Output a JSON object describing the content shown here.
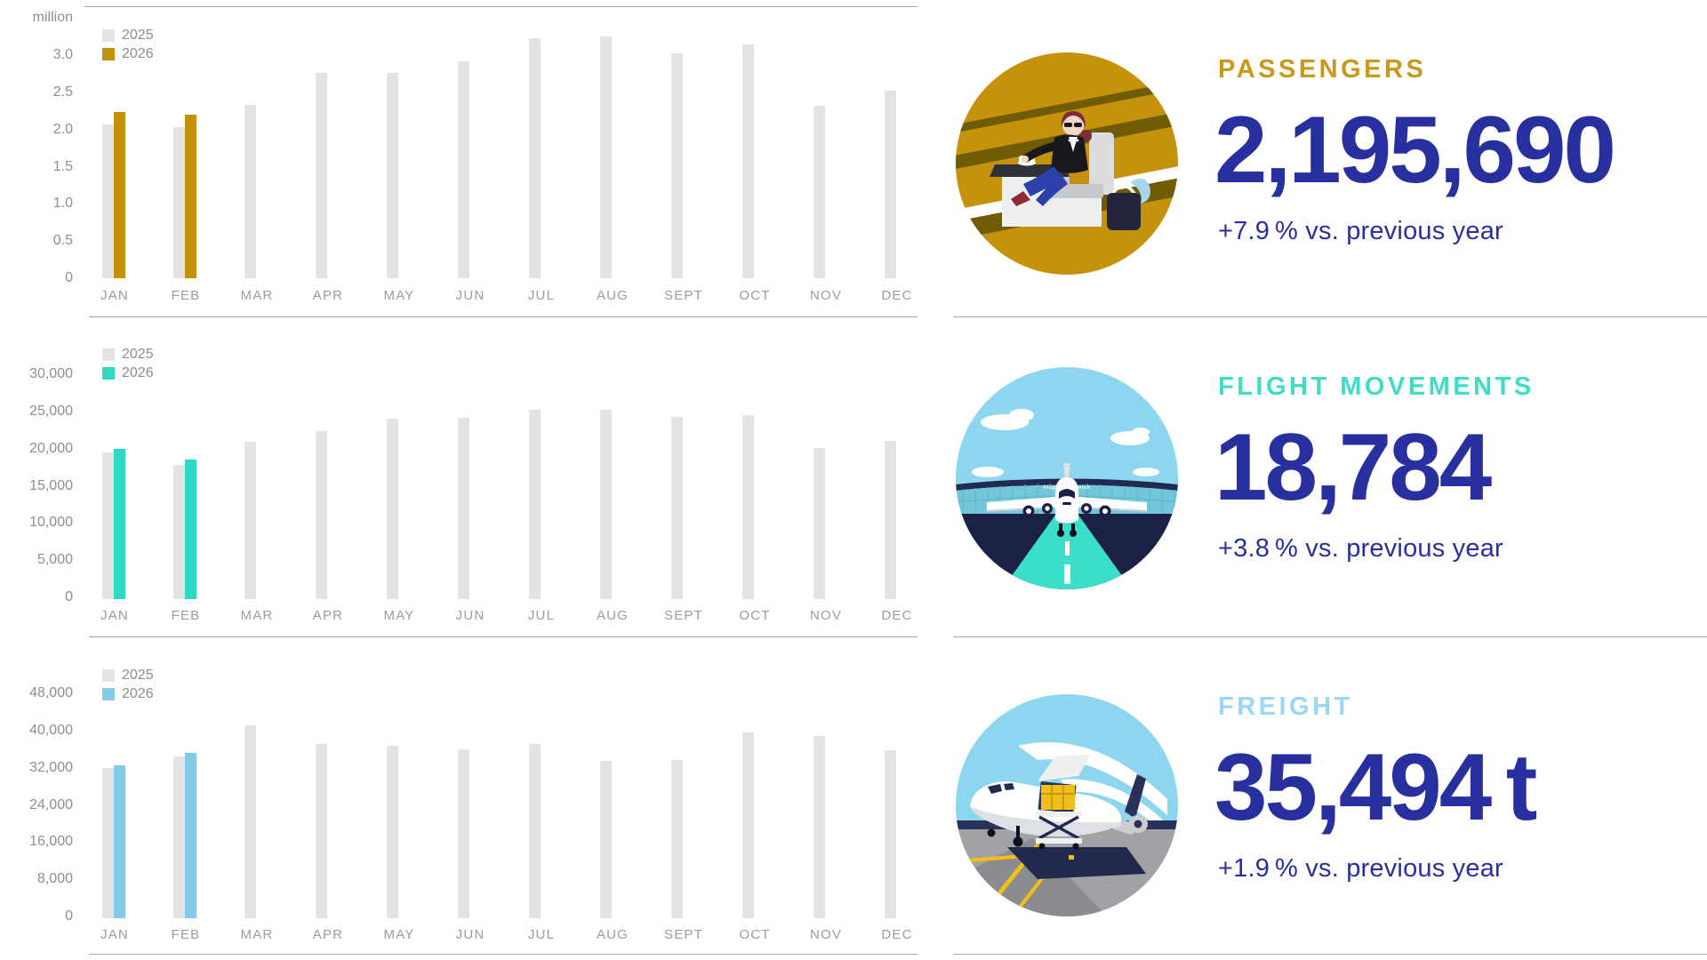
{
  "page": {
    "background": "#FFFFFF"
  },
  "colors": {
    "bar_2025": "#E3E3E6",
    "bar_gold_2026": "#C29104",
    "bar_teal_2026": "#2ED8C3",
    "bar_blue_2026": "#85CBE9",
    "heading_gold": "#C7981B",
    "heading_teal": "#3FDCC6",
    "heading_blue": "#9BD7F3",
    "kpi_navy": "#282F9E",
    "axis_text": "#8D8D92",
    "divider": "#A6A6A6"
  },
  "chart_data": [
    {
      "type": "bar",
      "section": "passengers",
      "unit_label": "million",
      "categories": [
        "JAN",
        "FEB",
        "MAR",
        "APR",
        "MAY",
        "JUN",
        "JUL",
        "AUG",
        "SEPT",
        "OCT",
        "NOV",
        "DEC"
      ],
      "y_ticks": [
        "3.0",
        "2.5",
        "2.0",
        "1.5",
        "1.0",
        "0.5",
        "0"
      ],
      "y_max": 3.0,
      "grid": false,
      "legend_position": "top-left",
      "legend": [
        {
          "label": "2025"
        },
        {
          "label": "2026"
        }
      ],
      "series": [
        {
          "name": "2025",
          "color": "#E3E3E6",
          "values": [
            2.07,
            2.03,
            2.33,
            2.76,
            2.76,
            2.92,
            3.23,
            3.25,
            3.02,
            3.14,
            2.32,
            2.52
          ]
        },
        {
          "name": "2026",
          "color": "#C29104",
          "values": [
            2.23,
            2.2,
            null,
            null,
            null,
            null,
            null,
            null,
            null,
            null,
            null,
            null
          ]
        }
      ]
    },
    {
      "type": "bar",
      "section": "flight-movements",
      "unit_label": "",
      "categories": [
        "JAN",
        "FEB",
        "MAR",
        "APR",
        "MAY",
        "JUN",
        "JUL",
        "AUG",
        "SEPT",
        "OCT",
        "NOV",
        "DEC"
      ],
      "y_ticks": [
        "30,000",
        "25,000",
        "20,000",
        "15,000",
        "10,000",
        "5,000",
        "0"
      ],
      "y_max": 30000,
      "grid": false,
      "legend_position": "top-left",
      "legend": [
        {
          "label": "2025"
        },
        {
          "label": "2026"
        }
      ],
      "series": [
        {
          "name": "2025",
          "color": "#E3E3E6",
          "values": [
            19700,
            18100,
            21100,
            22600,
            24300,
            24400,
            25500,
            25500,
            24500,
            24800,
            20300,
            21300
          ]
        },
        {
          "name": "2026",
          "color": "#2ED8C3",
          "values": [
            20200,
            18784,
            null,
            null,
            null,
            null,
            null,
            null,
            null,
            null,
            null,
            null
          ]
        }
      ]
    },
    {
      "type": "bar",
      "section": "freight",
      "unit_label": "",
      "categories": [
        "JAN",
        "FEB",
        "MAR",
        "APR",
        "MAY",
        "JUN",
        "JUL",
        "AUG",
        "SEPT",
        "OCT",
        "NOV",
        "DEC"
      ],
      "y_ticks": [
        "48,000",
        "40,000",
        "32,000",
        "24,000",
        "16,000",
        "8,000",
        "0"
      ],
      "y_max": 48000,
      "grid": false,
      "legend_position": "top-left",
      "legend": [
        {
          "label": "2025"
        },
        {
          "label": "2026"
        }
      ],
      "series": [
        {
          "name": "2025",
          "color": "#E3E3E6",
          "values": [
            32400,
            34800,
            41500,
            37500,
            37100,
            36300,
            37500,
            33800,
            34000,
            40000,
            39200,
            36100
          ]
        },
        {
          "name": "2026",
          "color": "#85CBE9",
          "values": [
            32800,
            35494,
            null,
            null,
            null,
            null,
            null,
            null,
            null,
            null,
            null,
            null
          ]
        }
      ]
    }
  ],
  "kpis": [
    {
      "id": "passengers",
      "heading": "PASSENGERS",
      "heading_color": "#C7981B",
      "value": "2,195,690",
      "delta": "+7.9 % vs. previous year",
      "text_color": "#282F9E"
    },
    {
      "id": "flight-movements",
      "heading": "FLIGHT MOVEMENTS",
      "heading_color": "#3FDCC6",
      "value": "18,784",
      "delta": "+3.8 % vs. previous year",
      "text_color": "#282F9E"
    },
    {
      "id": "freight",
      "heading": "FREIGHT",
      "heading_color": "#9BD7F3",
      "value": "35,494 t",
      "delta": "+1.9 % vs. previous year",
      "text_color": "#282F9E"
    }
  ],
  "illustrations": {
    "terminal_text": "Flughafen Zürich"
  }
}
